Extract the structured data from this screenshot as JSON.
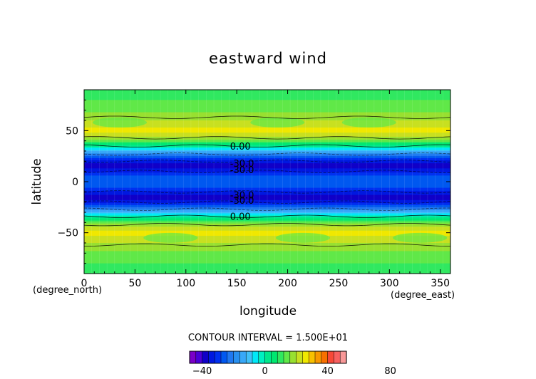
{
  "chart_data": {
    "type": "heatmap",
    "title": "eastward wind",
    "xlabel": "longitude",
    "ylabel": "latitude",
    "x_unit": "(degree_east)",
    "y_unit": "(degree_north)",
    "xlim": [
      0,
      360
    ],
    "ylim": [
      -90,
      90
    ],
    "x_ticks": [
      0,
      50,
      100,
      150,
      200,
      250,
      300,
      350
    ],
    "y_ticks": [
      -50,
      0,
      50
    ],
    "contour_interval_text": "CONTOUR INTERVAL = 1.500E+01",
    "contour_labels": [
      {
        "text": "0.00",
        "lon": 135,
        "lat": 35
      },
      {
        "text": "-30.0",
        "lon": 135,
        "lat": 18
      },
      {
        "text": "-30.0",
        "lon": 135,
        "lat": 12
      },
      {
        "text": "-30.0",
        "lon": 135,
        "lat": -13
      },
      {
        "text": "-30.0",
        "lon": 135,
        "lat": -18
      },
      {
        "text": "0.00",
        "lon": 135,
        "lat": -34
      }
    ],
    "zonal_profile": {
      "lat": [
        -90,
        -80,
        -70,
        -60,
        -50,
        -42,
        -35,
        -30,
        -25,
        -20,
        -15,
        -10,
        -5,
        0,
        5,
        10,
        15,
        20,
        25,
        30,
        35,
        42,
        50,
        60,
        70,
        80,
        90
      ],
      "u": [
        10,
        12,
        15,
        20,
        26,
        18,
        2,
        -12,
        -25,
        -35,
        -38,
        -33,
        -26,
        -24,
        -26,
        -33,
        -38,
        -35,
        -25,
        -12,
        2,
        18,
        26,
        20,
        15,
        12,
        10
      ]
    },
    "colorbar": {
      "levels": [
        -48,
        -44,
        -40,
        -36,
        -32,
        -28,
        -24,
        -20,
        -16,
        -12,
        -8,
        -4,
        0,
        4,
        8,
        12,
        16,
        20,
        24,
        28,
        32,
        36,
        40,
        44,
        48,
        52,
        56,
        60,
        64,
        68,
        72,
        76,
        80,
        84,
        88,
        92
      ],
      "tick_values": [
        -40,
        0,
        40,
        80
      ],
      "colors": [
        "#7a00c8",
        "#4b00d8",
        "#1000c8",
        "#0018e0",
        "#0030f0",
        "#0058f0",
        "#2078f0",
        "#2890f0",
        "#38a8f8",
        "#40c0f8",
        "#00e8f8",
        "#00f0c0",
        "#00e88c",
        "#00e870",
        "#30e860",
        "#60e848",
        "#98e030",
        "#c8e020",
        "#f0e800",
        "#f8c000",
        "#f89800",
        "#f87000",
        "#f84838",
        "#f86060",
        "#f89898"
      ]
    }
  }
}
